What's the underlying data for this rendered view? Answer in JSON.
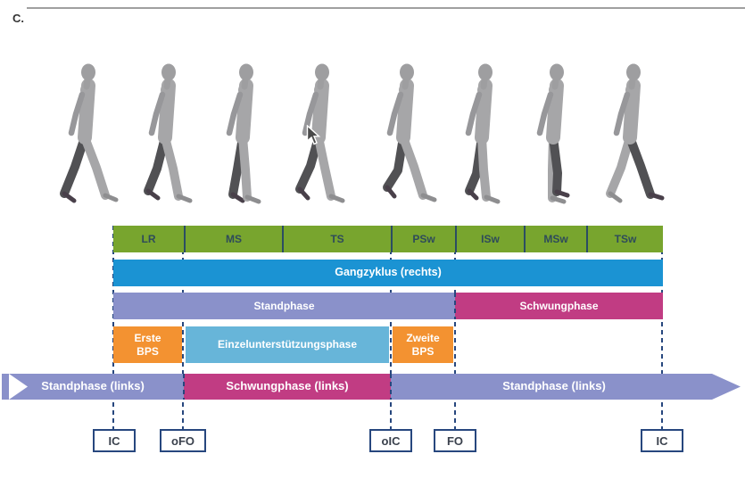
{
  "page": {
    "label": "C."
  },
  "figures": {
    "name": "gait-sequence-walking-silhouettes",
    "count": 8,
    "description": "eight gray walking human silhouettes with right leg shaded dark"
  },
  "diagram": {
    "gait_phases": [
      "LR",
      "MS",
      "TS",
      "PSw",
      "ISw",
      "MSw",
      "TSw"
    ],
    "cycle_label": "Gangzyklus (rechts)",
    "phase_row": {
      "stance": "Standphase",
      "swing": "Schwungphase"
    },
    "support_row": {
      "first": "Erste BPS",
      "single": "Einzelunterstützungsphase",
      "second": "Zweite BPS"
    },
    "left_leg_row": {
      "stance1": "Standphase (links)",
      "swing": "Schwungphase (links)",
      "stance2": "Standphase (links)"
    },
    "event_markers": [
      "IC",
      "oFO",
      "oIC",
      "FO",
      "IC"
    ],
    "colors": {
      "phase_green": "#78a52e",
      "cycle_blue": "#1b93d3",
      "stance_purple": "#8a91ca",
      "swing_magenta": "#c13c83",
      "bps_orange": "#f39231",
      "single_support_blue": "#67b5d9",
      "marker_navy": "#27477e",
      "figure_light": "#a6a6a8",
      "figure_dark": "#515154"
    }
  }
}
